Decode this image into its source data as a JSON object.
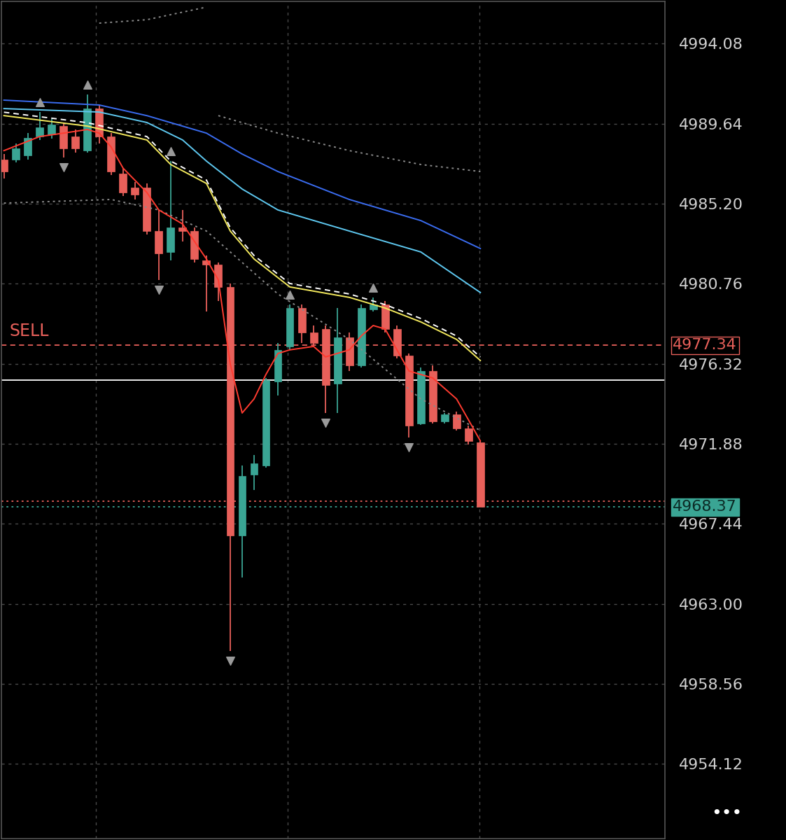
{
  "chart_data": {
    "type": "candlestick",
    "x": [
      0,
      1,
      2,
      3,
      4,
      5,
      6,
      7,
      8,
      9,
      10,
      11,
      12,
      13,
      14,
      15,
      16,
      17,
      18,
      19,
      20,
      21,
      22,
      23,
      24,
      25,
      26,
      27,
      28,
      29,
      30,
      31,
      32,
      33,
      34,
      35,
      36,
      37,
      38,
      39,
      40
    ],
    "open": [
      4987.64,
      4987.64,
      4987.87,
      4988.92,
      4989.04,
      4989.5,
      4988.92,
      4988.14,
      4990.47,
      4988.92,
      4986.86,
      4986.09,
      4986.09,
      4983.68,
      4982.52,
      4983.88,
      4983.68,
      4982.05,
      4981.82,
      4980.58,
      4966.8,
      4970.18,
      4970.68,
      4975.34,
      4977.28,
      4979.41,
      4978.06,
      4978.25,
      4975.22,
      4977.78,
      4976.23,
      4979.34,
      4979.61,
      4978.25,
      4976.78,
      4973.01,
      4975.92,
      4973.13,
      4973.52,
      4972.74,
      4971.96
    ],
    "high": [
      4987.95,
      4988.53,
      4989.11,
      4990.28,
      4989.89,
      4989.7,
      4989.31,
      4991.25,
      4990.67,
      4989.11,
      4987.17,
      4986.4,
      4986.32,
      4984.85,
      4987.56,
      4984.85,
      4983.88,
      4982.32,
      4981.94,
      4980.77,
      4970.68,
      4971.27,
      4975.53,
      4977.47,
      4979.61,
      4979.61,
      4978.44,
      4978.44,
      4979.41,
      4978.06,
      4979.61,
      4980.0,
      4979.8,
      4978.44,
      4976.89,
      4976.12,
      4976.23,
      4973.59,
      4973.67,
      4972.9,
      4972.04
    ],
    "low": [
      4986.59,
      4987.48,
      4987.64,
      4988.73,
      4988.8,
      4987.76,
      4988.03,
      4988.03,
      4988.53,
      4986.79,
      4985.62,
      4985.43,
      4983.49,
      4980.97,
      4982.05,
      4983.1,
      4981.94,
      4979.22,
      4979.8,
      4960.4,
      4964.48,
      4969.33,
      4970.57,
      4974.56,
      4977.09,
      4977.47,
      4977.28,
      4973.59,
      4973.59,
      4975.92,
      4976.12,
      4979.22,
      4978.06,
      4976.62,
      4972.24,
      4972.93,
      4973.01,
      4973.01,
      4972.62,
      4971.85,
      4968.37
    ],
    "close": [
      4986.98,
      4988.26,
      4988.84,
      4989.42,
      4989.58,
      4988.26,
      4988.26,
      4990.47,
      4988.92,
      4986.98,
      4985.82,
      4985.7,
      4983.68,
      4982.44,
      4983.88,
      4983.68,
      4982.13,
      4981.82,
      4980.58,
      4966.8,
      4970.1,
      4970.8,
      4975.42,
      4977.09,
      4979.41,
      4978.06,
      4977.47,
      4975.15,
      4977.78,
      4976.23,
      4979.41,
      4979.61,
      4978.25,
      4976.78,
      4972.9,
      4975.92,
      4973.13,
      4973.52,
      4972.74,
      4972.04,
      4968.37
    ],
    "up_color": "#3aa594",
    "down_color": "#e8605a",
    "lines": [
      {
        "color": "#3a6cf0",
        "line_style": "solid",
        "x": [
          0,
          8,
          12,
          17,
          20,
          23,
          29,
          35,
          40
        ],
        "values": [
          4990.94,
          4990.67,
          4990.08,
          4989.11,
          4987.95,
          4986.98,
          4985.43,
          4984.26,
          4982.71
        ]
      },
      {
        "color": "#5ec8f0",
        "line_style": "solid",
        "x": [
          0,
          8,
          12,
          15,
          17,
          20,
          23,
          29,
          35,
          40
        ],
        "values": [
          4990.47,
          4990.28,
          4989.7,
          4988.73,
          4987.56,
          4986.01,
          4984.85,
          4983.68,
          4982.52,
          4980.27
        ]
      },
      {
        "color": "#ffffff",
        "line_style": "dashed",
        "x": [
          0,
          7,
          12,
          14,
          17,
          19,
          21,
          24,
          29,
          32,
          35,
          38,
          40
        ],
        "values": [
          4990.27,
          4989.69,
          4988.92,
          4987.56,
          4986.51,
          4983.87,
          4982.32,
          4980.77,
          4980.19,
          4979.6,
          4978.83,
          4977.86,
          4976.69
        ]
      },
      {
        "color": "#f2e85c",
        "line_style": "solid",
        "x": [
          0,
          7,
          12,
          14,
          17,
          19,
          21,
          24,
          29,
          32,
          35,
          38,
          40
        ],
        "values": [
          4990.08,
          4989.5,
          4988.73,
          4987.37,
          4986.32,
          4983.68,
          4982.13,
          4980.58,
          4980.0,
          4979.41,
          4978.64,
          4977.67,
          4976.5
        ]
      },
      {
        "color": "#8a8a8a",
        "line_style": "dotted",
        "x": [
          8,
          12,
          17
        ],
        "values": [
          4995.21,
          4995.4,
          4996.1
        ]
      },
      {
        "color": "#8a8a8a",
        "line_style": "dotted",
        "x": [
          18,
          23,
          29,
          35,
          40
        ],
        "values": [
          4990.08,
          4989.11,
          4988.14,
          4987.37,
          4986.98
        ]
      },
      {
        "color": "#8a8a8a",
        "line_style": "dotted",
        "x": [
          0,
          9,
          13,
          17,
          19,
          23,
          29,
          35,
          40
        ],
        "values": [
          4985.23,
          4985.43,
          4984.85,
          4983.68,
          4982.52,
          4980.19,
          4977.67,
          4974.37,
          4972.62
        ]
      },
      {
        "color": "#ff3b30",
        "line_style": "solid",
        "x": [
          0,
          3,
          5,
          7,
          8,
          9,
          10,
          12,
          13,
          15,
          17,
          18,
          19,
          20,
          21,
          22,
          23,
          24,
          26,
          27,
          29,
          30,
          31,
          32,
          33,
          34,
          36,
          38,
          39,
          40
        ],
        "values": [
          4988.14,
          4988.92,
          4989.11,
          4989.31,
          4989.11,
          4988.34,
          4987.17,
          4985.82,
          4984.85,
          4984.07,
          4982.13,
          4980.97,
          4976.31,
          4973.59,
          4974.37,
          4975.73,
          4976.89,
          4977.09,
          4977.28,
          4976.7,
          4977.09,
          4977.86,
          4978.44,
          4978.25,
          4977.09,
          4975.92,
          4975.53,
          4974.37,
          4973.21,
          4972.04
        ]
      }
    ],
    "fractals_up": [
      3,
      7,
      14,
      24,
      31
    ],
    "fractals_down": [
      5,
      13,
      19,
      27,
      34
    ],
    "hlines": [
      {
        "value": 4975.42,
        "color": "#ffffff",
        "line_style": "solid"
      },
      {
        "value": 4977.34,
        "color": "#e8605a",
        "line_style": "dashed",
        "label": "4977.34"
      },
      {
        "value": 4968.7,
        "color": "#e8605a",
        "line_style": "dotted"
      },
      {
        "value": 4968.37,
        "color": "#3aa594",
        "line_style": "dotted",
        "label": "4968.37"
      }
    ],
    "annotations": [
      {
        "text": "SELL",
        "value": 4978.13,
        "color": "#e8605a"
      }
    ],
    "menu": "•••",
    "xlim": [
      -0.2,
      55.5
    ],
    "xticks": [
      7.73,
      23.84,
      39.95
    ],
    "ylim": [
      4950.0,
      4996.4
    ],
    "yticks": [
      4994.08,
      4989.64,
      {
        "value": 4985.2,
        "label": "4985.20"
      },
      4980.76,
      4976.32,
      4971.88,
      4967.44,
      {
        "value": 4963.0,
        "label": "4963.00"
      },
      4958.56,
      4954.12
    ],
    "grid": true,
    "tick_labels": "y"
  }
}
